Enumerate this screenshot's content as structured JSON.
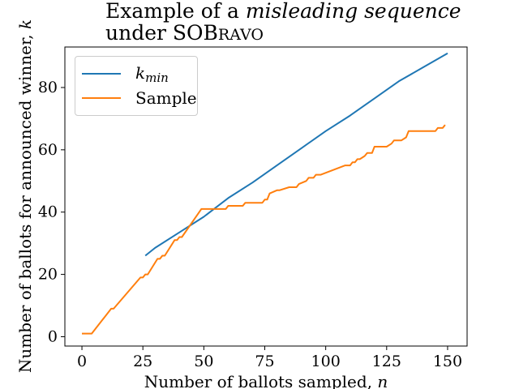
{
  "chart_data": {
    "type": "line",
    "title": {
      "line1_prefix": "Example of a",
      "line1_emph": "misleading sequence",
      "line2_prefix": "under SO",
      "line2_sc_B": "B",
      "line2_sc_RAVO": "RAVO"
    },
    "xlabel": {
      "text": "Number of ballots sampled, ",
      "var": "n"
    },
    "ylabel": {
      "text": "Number of ballots for announced winner, ",
      "var": "k"
    },
    "xlim": [
      -7,
      158
    ],
    "ylim": [
      -3,
      93
    ],
    "xticks": [
      0,
      25,
      50,
      75,
      100,
      125,
      150
    ],
    "yticks": [
      0,
      20,
      40,
      60,
      80
    ],
    "grid": false,
    "legend_placement": "top-left",
    "series": [
      {
        "name": "k_min",
        "legend_main": "k",
        "legend_sub": "min",
        "color": "#1f77b4",
        "x": [
          26,
          30,
          40,
          50,
          60,
          70,
          80,
          90,
          100,
          110,
          120,
          130,
          140,
          150
        ],
        "values": [
          26,
          28.5,
          33.5,
          38.5,
          44.5,
          49.5,
          55,
          60.5,
          66,
          71,
          76.5,
          82,
          86.5,
          91
        ]
      },
      {
        "name": "Sample",
        "legend_main": "Sample",
        "color": "#ff7f0e",
        "x": [
          0,
          4,
          12,
          13,
          24,
          25,
          26,
          27,
          31,
          32,
          33,
          34,
          38,
          39,
          40,
          41,
          49,
          51,
          55,
          56,
          57,
          59,
          60,
          63,
          64,
          66,
          67,
          71,
          72,
          74,
          75,
          76,
          77,
          80,
          81,
          85,
          86,
          88,
          89,
          92,
          93,
          95,
          96,
          98,
          108,
          109,
          110,
          111,
          112,
          113,
          114,
          116,
          117,
          119,
          120,
          124,
          125,
          127,
          128,
          130,
          131,
          133,
          134,
          145,
          146,
          148,
          149
        ],
        "values": [
          1,
          1,
          9,
          9,
          19,
          19,
          20,
          20,
          25,
          25,
          26,
          26,
          31,
          31,
          32,
          32,
          41,
          41,
          41,
          41,
          41,
          41,
          42,
          42,
          42,
          42,
          43,
          43,
          43,
          43,
          44,
          44,
          46,
          47,
          47,
          48,
          48,
          48,
          49,
          50,
          51,
          51,
          52,
          52,
          55,
          55,
          55,
          56,
          56,
          57,
          57,
          58,
          59,
          59,
          61,
          61,
          61,
          62,
          63,
          63,
          63,
          64,
          66,
          66,
          67,
          67,
          68
        ]
      }
    ]
  }
}
